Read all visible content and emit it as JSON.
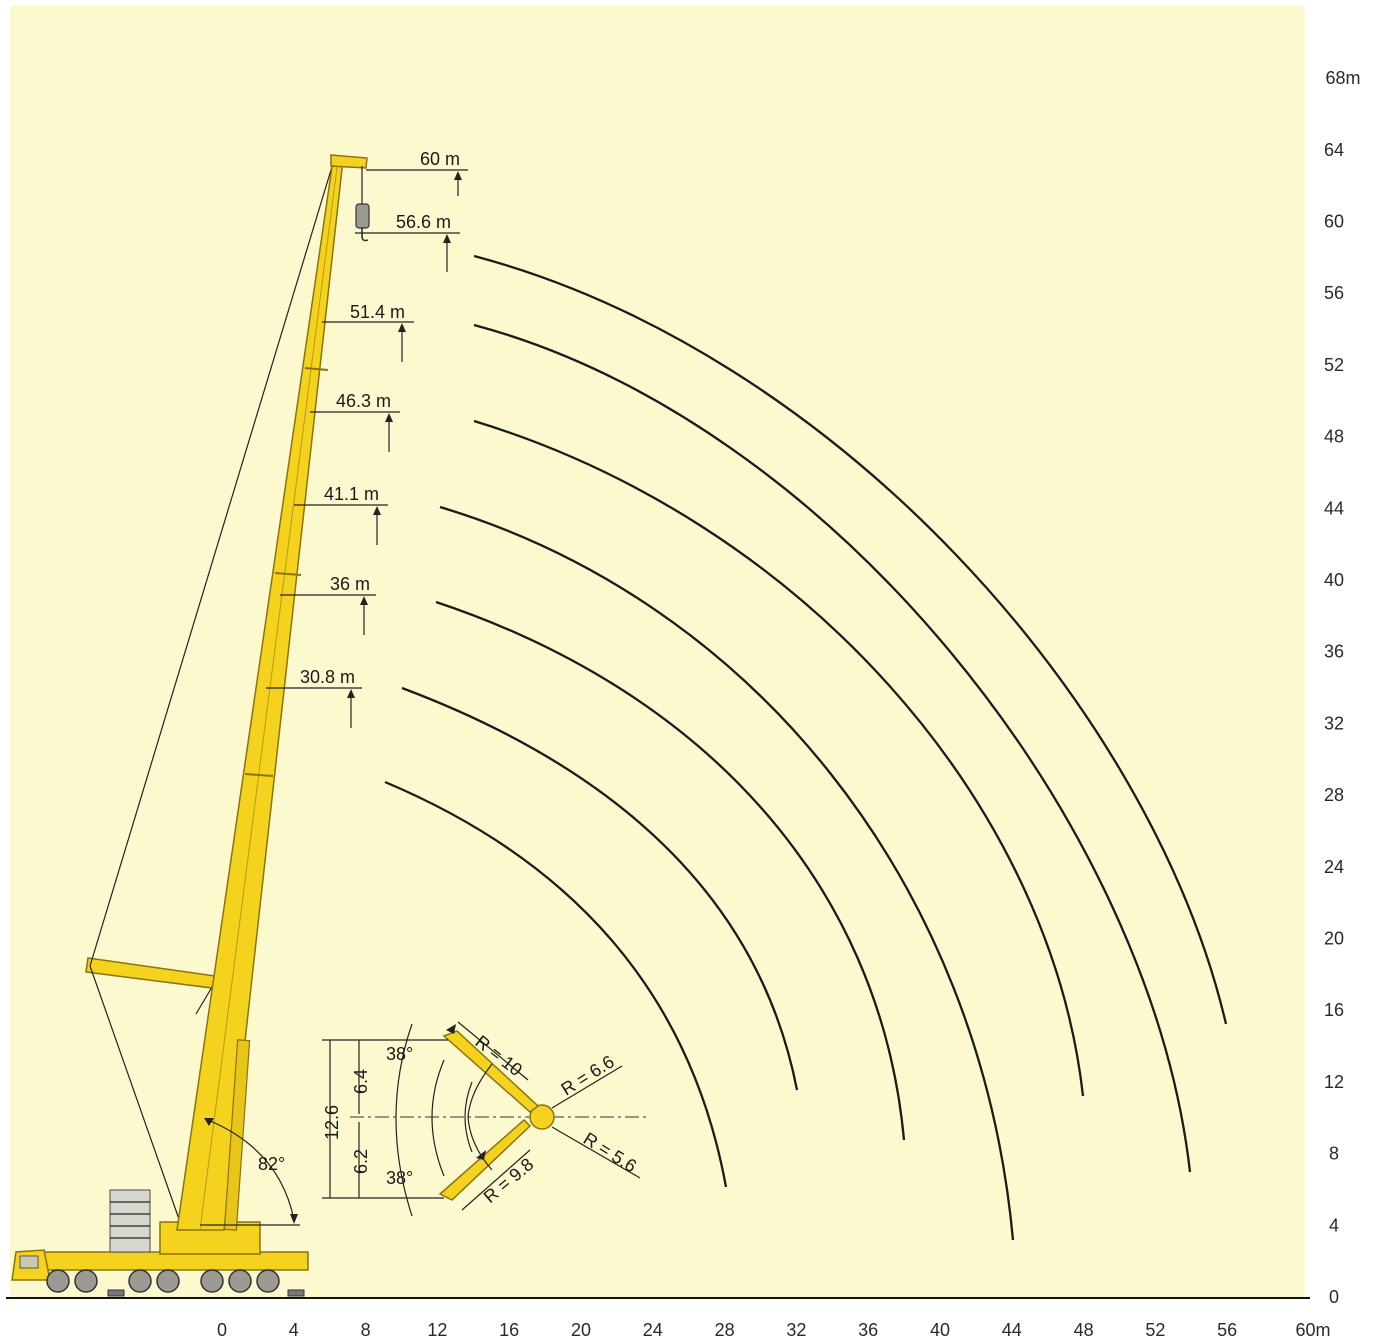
{
  "colors": {
    "background": "#fdf9cf",
    "crane": "#f4d21d",
    "crane_outline": "#8a7410",
    "arc": "#1b1b1b"
  },
  "axes": {
    "x_ticks": [
      "0",
      "4",
      "8",
      "12",
      "16",
      "20",
      "24",
      "28",
      "32",
      "36",
      "40",
      "44",
      "48",
      "52",
      "56",
      "60m"
    ],
    "y_ticks": [
      "0",
      "4",
      "8",
      "12",
      "16",
      "20",
      "24",
      "28",
      "32",
      "36",
      "40",
      "44",
      "48",
      "52",
      "56",
      "60",
      "64",
      "68m"
    ]
  },
  "boom_lengths": [
    {
      "label": "60 m",
      "value": 60
    },
    {
      "label": "56.6 m",
      "value": 56.6
    },
    {
      "label": "51.4 m",
      "value": 51.4
    },
    {
      "label": "46.3 m",
      "value": 46.3
    },
    {
      "label": "41.1 m",
      "value": 41.1
    },
    {
      "label": "36 m",
      "value": 36
    },
    {
      "label": "30.8 m",
      "value": 30.8
    }
  ],
  "boom_angle_label": "82°",
  "luffing": {
    "angle_top": "38°",
    "angle_bottom": "38°",
    "height_total": "12.6",
    "height_upper": "6.4",
    "height_lower": "6.2",
    "r_upper_arm": "R = 10",
    "r_upper_head": "R = 6.6",
    "r_lower_arm": "R = 9.8",
    "r_lower_head": "R = 5.6"
  }
}
